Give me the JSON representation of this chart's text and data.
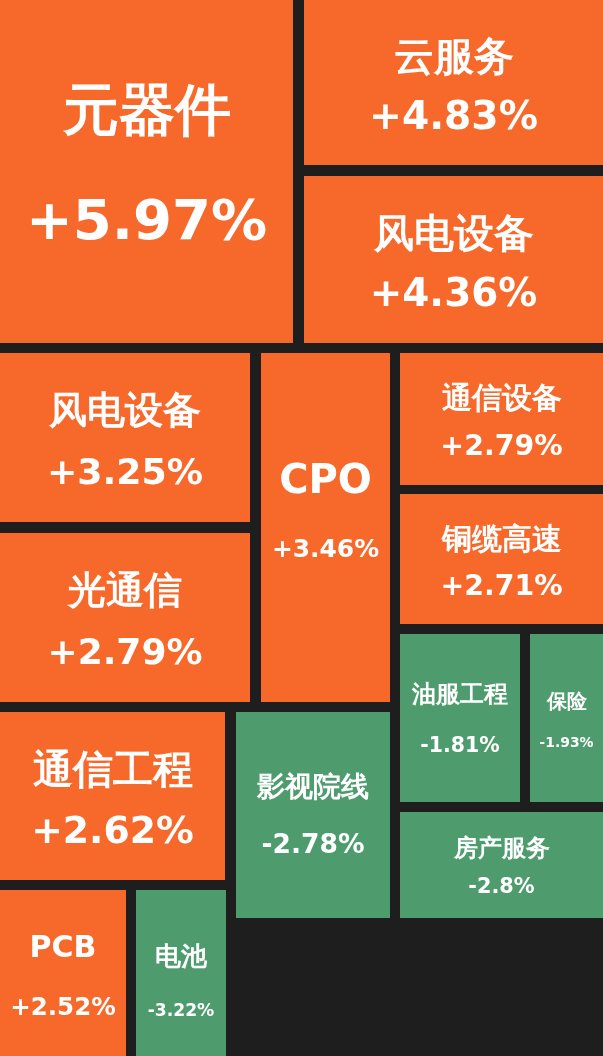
{
  "chart_data": {
    "type": "other",
    "categories": [
      "元器件",
      "云服务",
      "风电设备",
      "风电设备",
      "CPO",
      "通信设备",
      "光通信",
      "铜缆高速",
      "通信工程",
      "油服工程",
      "保险",
      "影视院线",
      "房产服务",
      "PCB",
      "电池"
    ],
    "values": [
      5.97,
      4.83,
      4.36,
      3.25,
      3.46,
      2.79,
      2.79,
      2.71,
      2.62,
      -1.81,
      -1.93,
      -2.78,
      -2.8,
      2.52,
      -3.22
    ],
    "value_labels": [
      "+5.97%",
      "+4.83%",
      "+4.36%",
      "+3.25%",
      "+3.46%",
      "+2.79%",
      "+2.79%",
      "+2.71%",
      "+2.62%",
      "-1.81%",
      "-1.93%",
      "-2.78%",
      "-2.8%",
      "+2.52%",
      "-3.22%"
    ],
    "colors": [
      "#f7692a",
      "#f7692a",
      "#f7692a",
      "#f7692a",
      "#f7692a",
      "#f7692a",
      "#f7692a",
      "#f7692a",
      "#f7692a",
      "#4e9c6e",
      "#4e9c6e",
      "#4e9c6e",
      "#4e9c6e",
      "#f7692a",
      "#4e9c6e"
    ]
  }
}
